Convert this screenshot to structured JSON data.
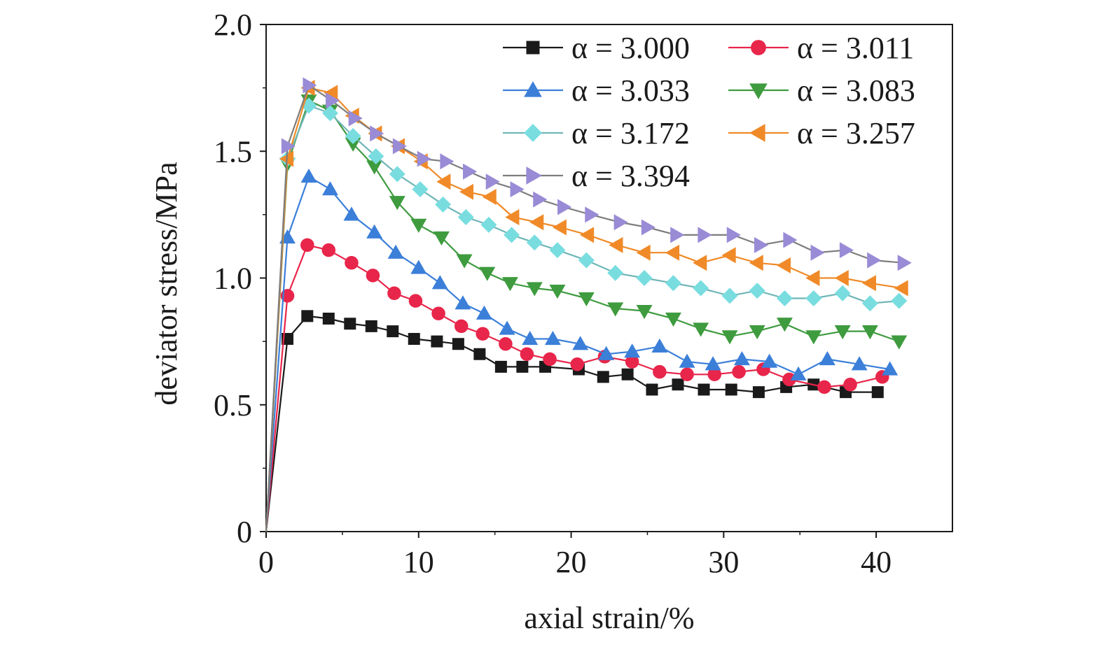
{
  "chart_data": {
    "type": "line",
    "xlabel": "axial strain/%",
    "ylabel": "deviator stress/MPa",
    "xlim": [
      0,
      45
    ],
    "ylim": [
      0,
      2.0
    ],
    "xticks": [
      0,
      10,
      20,
      30,
      40
    ],
    "yticks": [
      0,
      0.5,
      1.0,
      1.5,
      2.0
    ],
    "xtick_labels": [
      "0",
      "10",
      "20",
      "30",
      "40"
    ],
    "ytick_labels": [
      "0",
      "0.5",
      "1.0",
      "1.5",
      "2.0"
    ],
    "legend_position": "top-right",
    "legend_columns": 2,
    "legend_symbol": "α",
    "series": [
      {
        "name": "α = 3.000",
        "value": "3.000",
        "color": "#1a1a1a",
        "marker": "square",
        "x": [
          0,
          1.4,
          2.7,
          4.1,
          5.5,
          6.9,
          8.3,
          9.7,
          11.2,
          12.6,
          14.0,
          15.4,
          16.8,
          18.3,
          20.5,
          22.1,
          23.7,
          25.3,
          27.0,
          28.7,
          30.5,
          32.3,
          34.1,
          35.9,
          38.0,
          40.1
        ],
        "y": [
          0,
          0.76,
          0.85,
          0.84,
          0.82,
          0.81,
          0.79,
          0.76,
          0.75,
          0.74,
          0.7,
          0.65,
          0.65,
          0.65,
          0.64,
          0.61,
          0.62,
          0.56,
          0.58,
          0.56,
          0.56,
          0.55,
          0.57,
          0.58,
          0.55,
          0.55
        ]
      },
      {
        "name": "α = 3.011",
        "value": "3.011",
        "color": "#e8254a",
        "marker": "circle",
        "x": [
          0,
          1.4,
          2.7,
          4.1,
          5.6,
          7.0,
          8.4,
          9.8,
          11.3,
          12.8,
          14.2,
          15.7,
          17.1,
          18.6,
          20.4,
          22.2,
          24.0,
          25.8,
          27.6,
          29.4,
          31.0,
          32.6,
          34.3,
          36.6,
          38.3,
          40.4
        ],
        "y": [
          0,
          0.93,
          1.13,
          1.11,
          1.06,
          1.01,
          0.94,
          0.91,
          0.86,
          0.81,
          0.78,
          0.74,
          0.7,
          0.68,
          0.66,
          0.69,
          0.67,
          0.63,
          0.62,
          0.62,
          0.63,
          0.64,
          0.6,
          0.57,
          0.58,
          0.61
        ]
      },
      {
        "name": "α = 3.033",
        "value": "3.033",
        "color": "#3b7fd9",
        "marker": "triangle-up",
        "x": [
          0,
          1.4,
          2.8,
          4.2,
          5.6,
          7.1,
          8.5,
          10.0,
          11.4,
          12.9,
          14.3,
          15.8,
          17.3,
          18.8,
          20.6,
          22.3,
          24.0,
          25.8,
          27.6,
          29.3,
          31.2,
          33.0,
          34.9,
          36.8,
          38.9,
          40.9
        ],
        "y": [
          0,
          1.16,
          1.4,
          1.35,
          1.25,
          1.18,
          1.1,
          1.04,
          0.98,
          0.9,
          0.86,
          0.8,
          0.76,
          0.76,
          0.74,
          0.7,
          0.71,
          0.73,
          0.67,
          0.66,
          0.68,
          0.67,
          0.62,
          0.68,
          0.66,
          0.64
        ]
      },
      {
        "name": "α = 3.083",
        "value": "3.083",
        "color": "#3e9b3e",
        "marker": "triangle-down",
        "x": [
          0,
          1.4,
          2.8,
          4.2,
          5.7,
          7.1,
          8.6,
          10.0,
          11.5,
          13.0,
          14.5,
          16.0,
          17.6,
          19.1,
          21.0,
          22.9,
          24.8,
          26.7,
          28.5,
          30.4,
          32.2,
          34.0,
          35.9,
          37.8,
          39.6,
          41.5
        ],
        "y": [
          0,
          1.45,
          1.7,
          1.66,
          1.53,
          1.44,
          1.3,
          1.21,
          1.16,
          1.07,
          1.02,
          0.98,
          0.96,
          0.95,
          0.92,
          0.88,
          0.87,
          0.84,
          0.8,
          0.77,
          0.79,
          0.82,
          0.77,
          0.79,
          0.79,
          0.75
        ]
      },
      {
        "name": "α = 3.172",
        "value": "3.172",
        "color": "#79dde0",
        "marker": "diamond",
        "x": [
          0,
          1.4,
          2.8,
          4.2,
          5.7,
          7.2,
          8.6,
          10.1,
          11.6,
          13.1,
          14.6,
          16.1,
          17.6,
          19.1,
          21.0,
          22.9,
          24.8,
          26.7,
          28.5,
          30.4,
          32.2,
          34.0,
          35.9,
          37.8,
          39.6,
          41.5
        ],
        "y": [
          0,
          1.47,
          1.68,
          1.65,
          1.56,
          1.48,
          1.41,
          1.35,
          1.29,
          1.24,
          1.21,
          1.17,
          1.14,
          1.11,
          1.07,
          1.02,
          1.0,
          0.98,
          0.96,
          0.93,
          0.95,
          0.92,
          0.92,
          0.94,
          0.9,
          0.91
        ]
      },
      {
        "name": "α = 3.257",
        "value": "3.257",
        "color": "#f08a28",
        "marker": "triangle-left",
        "x": [
          0,
          1.4,
          2.8,
          4.3,
          5.7,
          7.2,
          8.7,
          10.2,
          11.7,
          13.2,
          14.7,
          16.2,
          17.8,
          19.3,
          21.1,
          23.0,
          24.8,
          26.7,
          28.5,
          30.4,
          32.2,
          34.0,
          35.9,
          37.8,
          39.6,
          41.7
        ],
        "y": [
          0,
          1.47,
          1.75,
          1.73,
          1.64,
          1.57,
          1.52,
          1.46,
          1.38,
          1.34,
          1.32,
          1.24,
          1.22,
          1.2,
          1.17,
          1.13,
          1.1,
          1.1,
          1.06,
          1.09,
          1.06,
          1.05,
          1.0,
          1.0,
          0.98,
          0.96
        ]
      },
      {
        "name": "α = 3.394",
        "value": "3.394",
        "color": "#9a8bd6",
        "marker": "triangle-right",
        "x": [
          0,
          1.4,
          2.8,
          4.3,
          5.8,
          7.2,
          8.7,
          10.3,
          11.8,
          13.3,
          14.8,
          16.4,
          17.9,
          19.5,
          21.3,
          23.2,
          25.0,
          26.9,
          28.7,
          30.6,
          32.4,
          34.3,
          36.1,
          38.0,
          39.8,
          41.8
        ],
        "y": [
          0,
          1.52,
          1.76,
          1.7,
          1.63,
          1.57,
          1.52,
          1.47,
          1.46,
          1.42,
          1.38,
          1.35,
          1.31,
          1.28,
          1.25,
          1.22,
          1.2,
          1.17,
          1.17,
          1.17,
          1.13,
          1.15,
          1.1,
          1.11,
          1.07,
          1.06
        ]
      }
    ]
  }
}
